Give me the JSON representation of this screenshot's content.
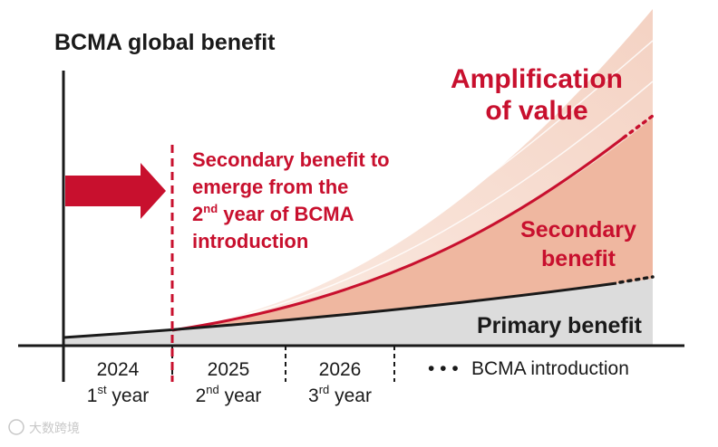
{
  "title": "BCMA global benefit",
  "annotation": {
    "line1": "Secondary benefit to",
    "line2": "emerge from the",
    "line3_num": "2",
    "line3_sup": "nd",
    "line3_rest": " year of BCMA",
    "line4": "introduction"
  },
  "labels": {
    "amplification_line1": "Amplification",
    "amplification_line2": "of value",
    "secondary_line1": "Secondary",
    "secondary_line2": "benefit",
    "primary": "Primary benefit"
  },
  "axis": {
    "years": [
      {
        "year": "2024",
        "ord_num": "1",
        "ord_sup": "st",
        "ord_word": " year"
      },
      {
        "year": "2025",
        "ord_num": "2",
        "ord_sup": "nd",
        "ord_word": " year"
      },
      {
        "year": "2026",
        "ord_num": "3",
        "ord_sup": "rd",
        "ord_word": " year"
      }
    ],
    "legend_dots": "• • •",
    "legend_text": "BCMA introduction"
  },
  "watermark": "大数跨境",
  "colors": {
    "red": "#c8102e",
    "secondary_fill": "#efb7a0",
    "amplification_fill": "#f7ddd1",
    "primary_fill": "#dcdcdc",
    "black": "#1a1a1a"
  }
}
